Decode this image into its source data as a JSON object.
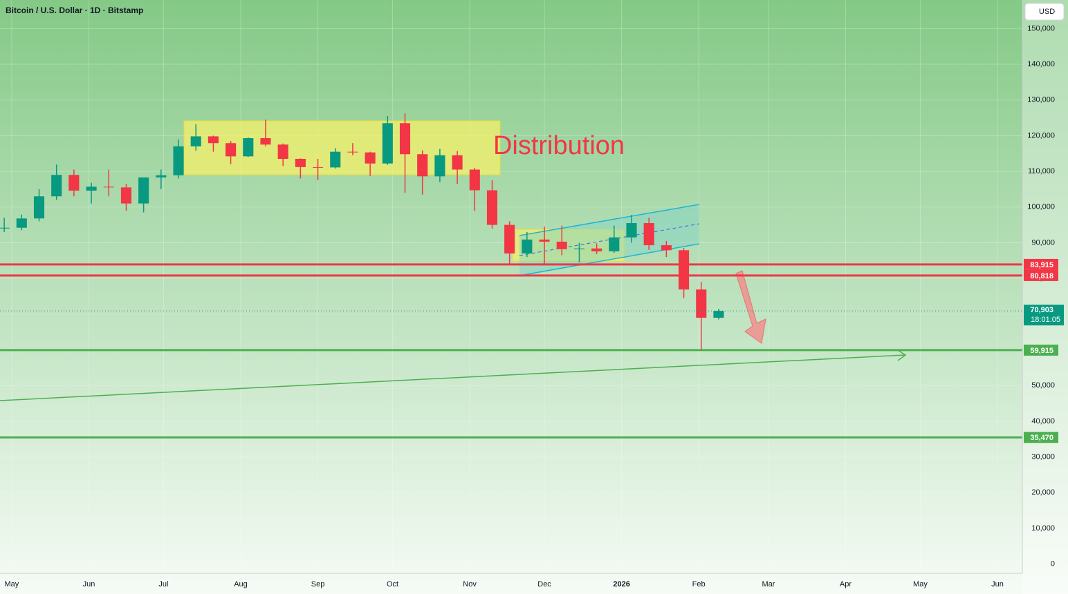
{
  "chart_data": {
    "type": "candlestick",
    "title": "Bitcoin / U.S. Dollar · 1D · Bitstamp",
    "currency": "USD",
    "x": [
      -3,
      4,
      11,
      18,
      25,
      32,
      39,
      46,
      53,
      60,
      67,
      74,
      81,
      88,
      95,
      102,
      109,
      116,
      123,
      130,
      137,
      144,
      151,
      158,
      165,
      172,
      179,
      186,
      193,
      200,
      207,
      214,
      221,
      228,
      235,
      242,
      249,
      256,
      263,
      270,
      277,
      284
    ],
    "open": [
      94000,
      94200,
      96800,
      103000,
      109000,
      104600,
      105700,
      105500,
      101000,
      108300,
      108900,
      117000,
      119800,
      117900,
      114200,
      119300,
      117500,
      113500,
      111200,
      111100,
      115500,
      115300,
      112200,
      123500,
      114800,
      108600,
      114500,
      110500,
      104700,
      95000,
      87000,
      90900,
      90300,
      88200,
      88400,
      87600,
      91500,
      95500,
      89300,
      87900,
      76900,
      69000
    ],
    "high": [
      97000,
      97900,
      105000,
      111900,
      110500,
      106800,
      110500,
      106500,
      108000,
      110500,
      118900,
      123200,
      120000,
      118500,
      119500,
      124500,
      117800,
      113600,
      113500,
      116500,
      117900,
      115500,
      125500,
      126200,
      115900,
      116300,
      115700,
      111000,
      107500,
      96000,
      93000,
      94500,
      94800,
      90000,
      89800,
      94800,
      97800,
      97000,
      90500,
      88500,
      79000,
      71500
    ],
    "low": [
      93000,
      93500,
      96000,
      102000,
      103000,
      101000,
      103000,
      99000,
      98500,
      105000,
      108000,
      115800,
      115500,
      112000,
      114000,
      117000,
      111500,
      108000,
      107500,
      110800,
      114500,
      108700,
      111800,
      104000,
      103500,
      107000,
      106500,
      98900,
      94000,
      84000,
      86000,
      84000,
      86500,
      84500,
      86800,
      87200,
      90000,
      88000,
      86000,
      74500,
      60000,
      68500
    ],
    "close": [
      94200,
      96800,
      103000,
      109000,
      104600,
      105700,
      105500,
      101000,
      108300,
      108900,
      117000,
      119800,
      117900,
      114200,
      119300,
      117500,
      113500,
      111200,
      111100,
      115500,
      115300,
      112200,
      123500,
      114800,
      108600,
      114500,
      110500,
      104700,
      95000,
      87000,
      90900,
      90300,
      88200,
      88400,
      87600,
      91500,
      95500,
      89300,
      87900,
      76900,
      69000,
      70903
    ],
    "up_color": "#089981",
    "down_color": "#f23645",
    "xlim": [
      -4.7,
      406
    ],
    "xticks": [
      {
        "value": 0,
        "label": "May"
      },
      {
        "value": 31,
        "label": "Jun"
      },
      {
        "value": 61,
        "label": "Jul"
      },
      {
        "value": 92,
        "label": "Aug"
      },
      {
        "value": 123,
        "label": "Sep"
      },
      {
        "value": 153,
        "label": "Oct"
      },
      {
        "value": 184,
        "label": "Nov"
      },
      {
        "value": 214,
        "label": "Dec"
      },
      {
        "value": 245,
        "label": "2026"
      },
      {
        "value": 276,
        "label": "Feb"
      },
      {
        "value": 304,
        "label": "Mar"
      },
      {
        "value": 335,
        "label": "Apr"
      },
      {
        "value": 365,
        "label": "May"
      },
      {
        "value": 396,
        "label": "Jun"
      }
    ],
    "ylim": [
      -8400,
      158000
    ],
    "yticks": [
      0,
      {
        "value": 10000,
        "label": "10,000"
      },
      {
        "value": 20000,
        "label": "20,000"
      },
      {
        "value": 30000,
        "label": "30,000"
      },
      {
        "value": 40000,
        "label": "40,000"
      },
      {
        "value": 50000,
        "label": "50,000"
      },
      {
        "value": 60000,
        "label": "60,000"
      },
      {
        "value": 70000,
        "label": "70,000"
      },
      {
        "value": 80000,
        "label": "80,000"
      },
      {
        "value": 90000,
        "label": "90,000"
      },
      {
        "value": 100000,
        "label": "100,000"
      },
      {
        "value": 110000,
        "label": "110,000"
      },
      {
        "value": 120000,
        "label": "120,000"
      },
      {
        "value": 130000,
        "label": "130,000"
      },
      {
        "value": 140000,
        "label": "140,000"
      },
      {
        "value": 150000,
        "label": "150,000"
      }
    ],
    "grid": true,
    "levels": [
      {
        "value": 83915,
        "label": "83,915",
        "color": "#f23645"
      },
      {
        "value": 80818,
        "label": "80,818",
        "color": "#f23645"
      },
      {
        "value": 59915,
        "label": "59,915",
        "color": "#4caf50"
      },
      {
        "value": 35470,
        "label": "35,470",
        "color": "#4caf50"
      }
    ],
    "last_price": {
      "value": 70903,
      "label": "70,903",
      "countdown": "18:01:05",
      "color": "#089981"
    },
    "annotation": "Distribution"
  }
}
